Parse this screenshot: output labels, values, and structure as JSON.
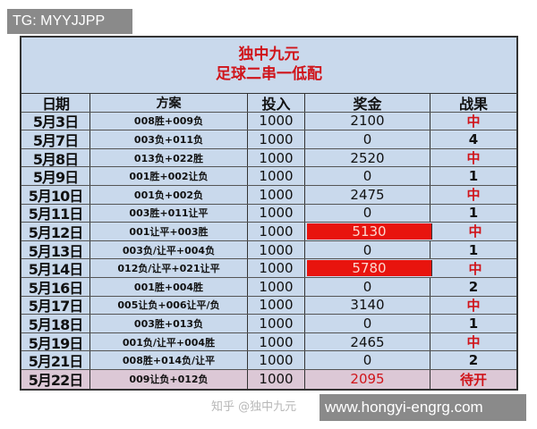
{
  "top_tag": "TG: MYYJJPP",
  "table": {
    "title_line1": "独中九元",
    "title_line2": "足球二串一低配",
    "headers": [
      "日期",
      "方案",
      "投入",
      "奖金",
      "战果"
    ],
    "rows": [
      {
        "date": "5月3日",
        "plan": "008胜+009负",
        "invest": "1000",
        "prize": "2100",
        "result": "中",
        "hit": true
      },
      {
        "date": "5月7日",
        "plan": "003负+011负",
        "invest": "1000",
        "prize": "0",
        "result": "4"
      },
      {
        "date": "5月8日",
        "plan": "013负+022胜",
        "invest": "1000",
        "prize": "2520",
        "result": "中",
        "hit": true
      },
      {
        "date": "5月9日",
        "plan": "001胜+002让负",
        "invest": "1000",
        "prize": "0",
        "result": "1"
      },
      {
        "date": "5月10日",
        "plan": "001负+002负",
        "invest": "1000",
        "prize": "2475",
        "result": "中",
        "hit": true
      },
      {
        "date": "5月11日",
        "plan": "003胜+011让平",
        "invest": "1000",
        "prize": "0",
        "result": "1"
      },
      {
        "date": "5月12日",
        "plan": "001让平+003胜",
        "invest": "1000",
        "prize": "5130",
        "result": "中",
        "hit": true,
        "highlight": true
      },
      {
        "date": "5月13日",
        "plan": "003负/让平+004负",
        "invest": "1000",
        "prize": "0",
        "result": "1"
      },
      {
        "date": "5月14日",
        "plan": "012负/让平+021让平",
        "invest": "1000",
        "prize": "5780",
        "result": "中",
        "hit": true,
        "highlight": true
      },
      {
        "date": "5月16日",
        "plan": "001胜+004胜",
        "invest": "1000",
        "prize": "0",
        "result": "2"
      },
      {
        "date": "5月17日",
        "plan": "005让负+006让平/负",
        "invest": "1000",
        "prize": "3140",
        "result": "中",
        "hit": true
      },
      {
        "date": "5月18日",
        "plan": "003胜+013负",
        "invest": "1000",
        "prize": "0",
        "result": "1"
      },
      {
        "date": "5月19日",
        "plan": "001负/让平+004胜",
        "invest": "1000",
        "prize": "2465",
        "result": "中",
        "hit": true
      },
      {
        "date": "5月21日",
        "plan": "008胜+014负/让平",
        "invest": "1000",
        "prize": "0",
        "result": "2"
      },
      {
        "date": "5月22日",
        "plan": "009让负+012负",
        "invest": "1000",
        "prize": "2095",
        "result": "待开",
        "pending": true
      }
    ]
  },
  "watermark": "知乎 @独中九元",
  "site_tag": "www.hongyi-engrg.com",
  "colors": {
    "accent_red": "#d0141a",
    "highlight": "#e8140e",
    "table_bg": "#c9d9ec",
    "pending_bg": "#dcc8d6"
  }
}
